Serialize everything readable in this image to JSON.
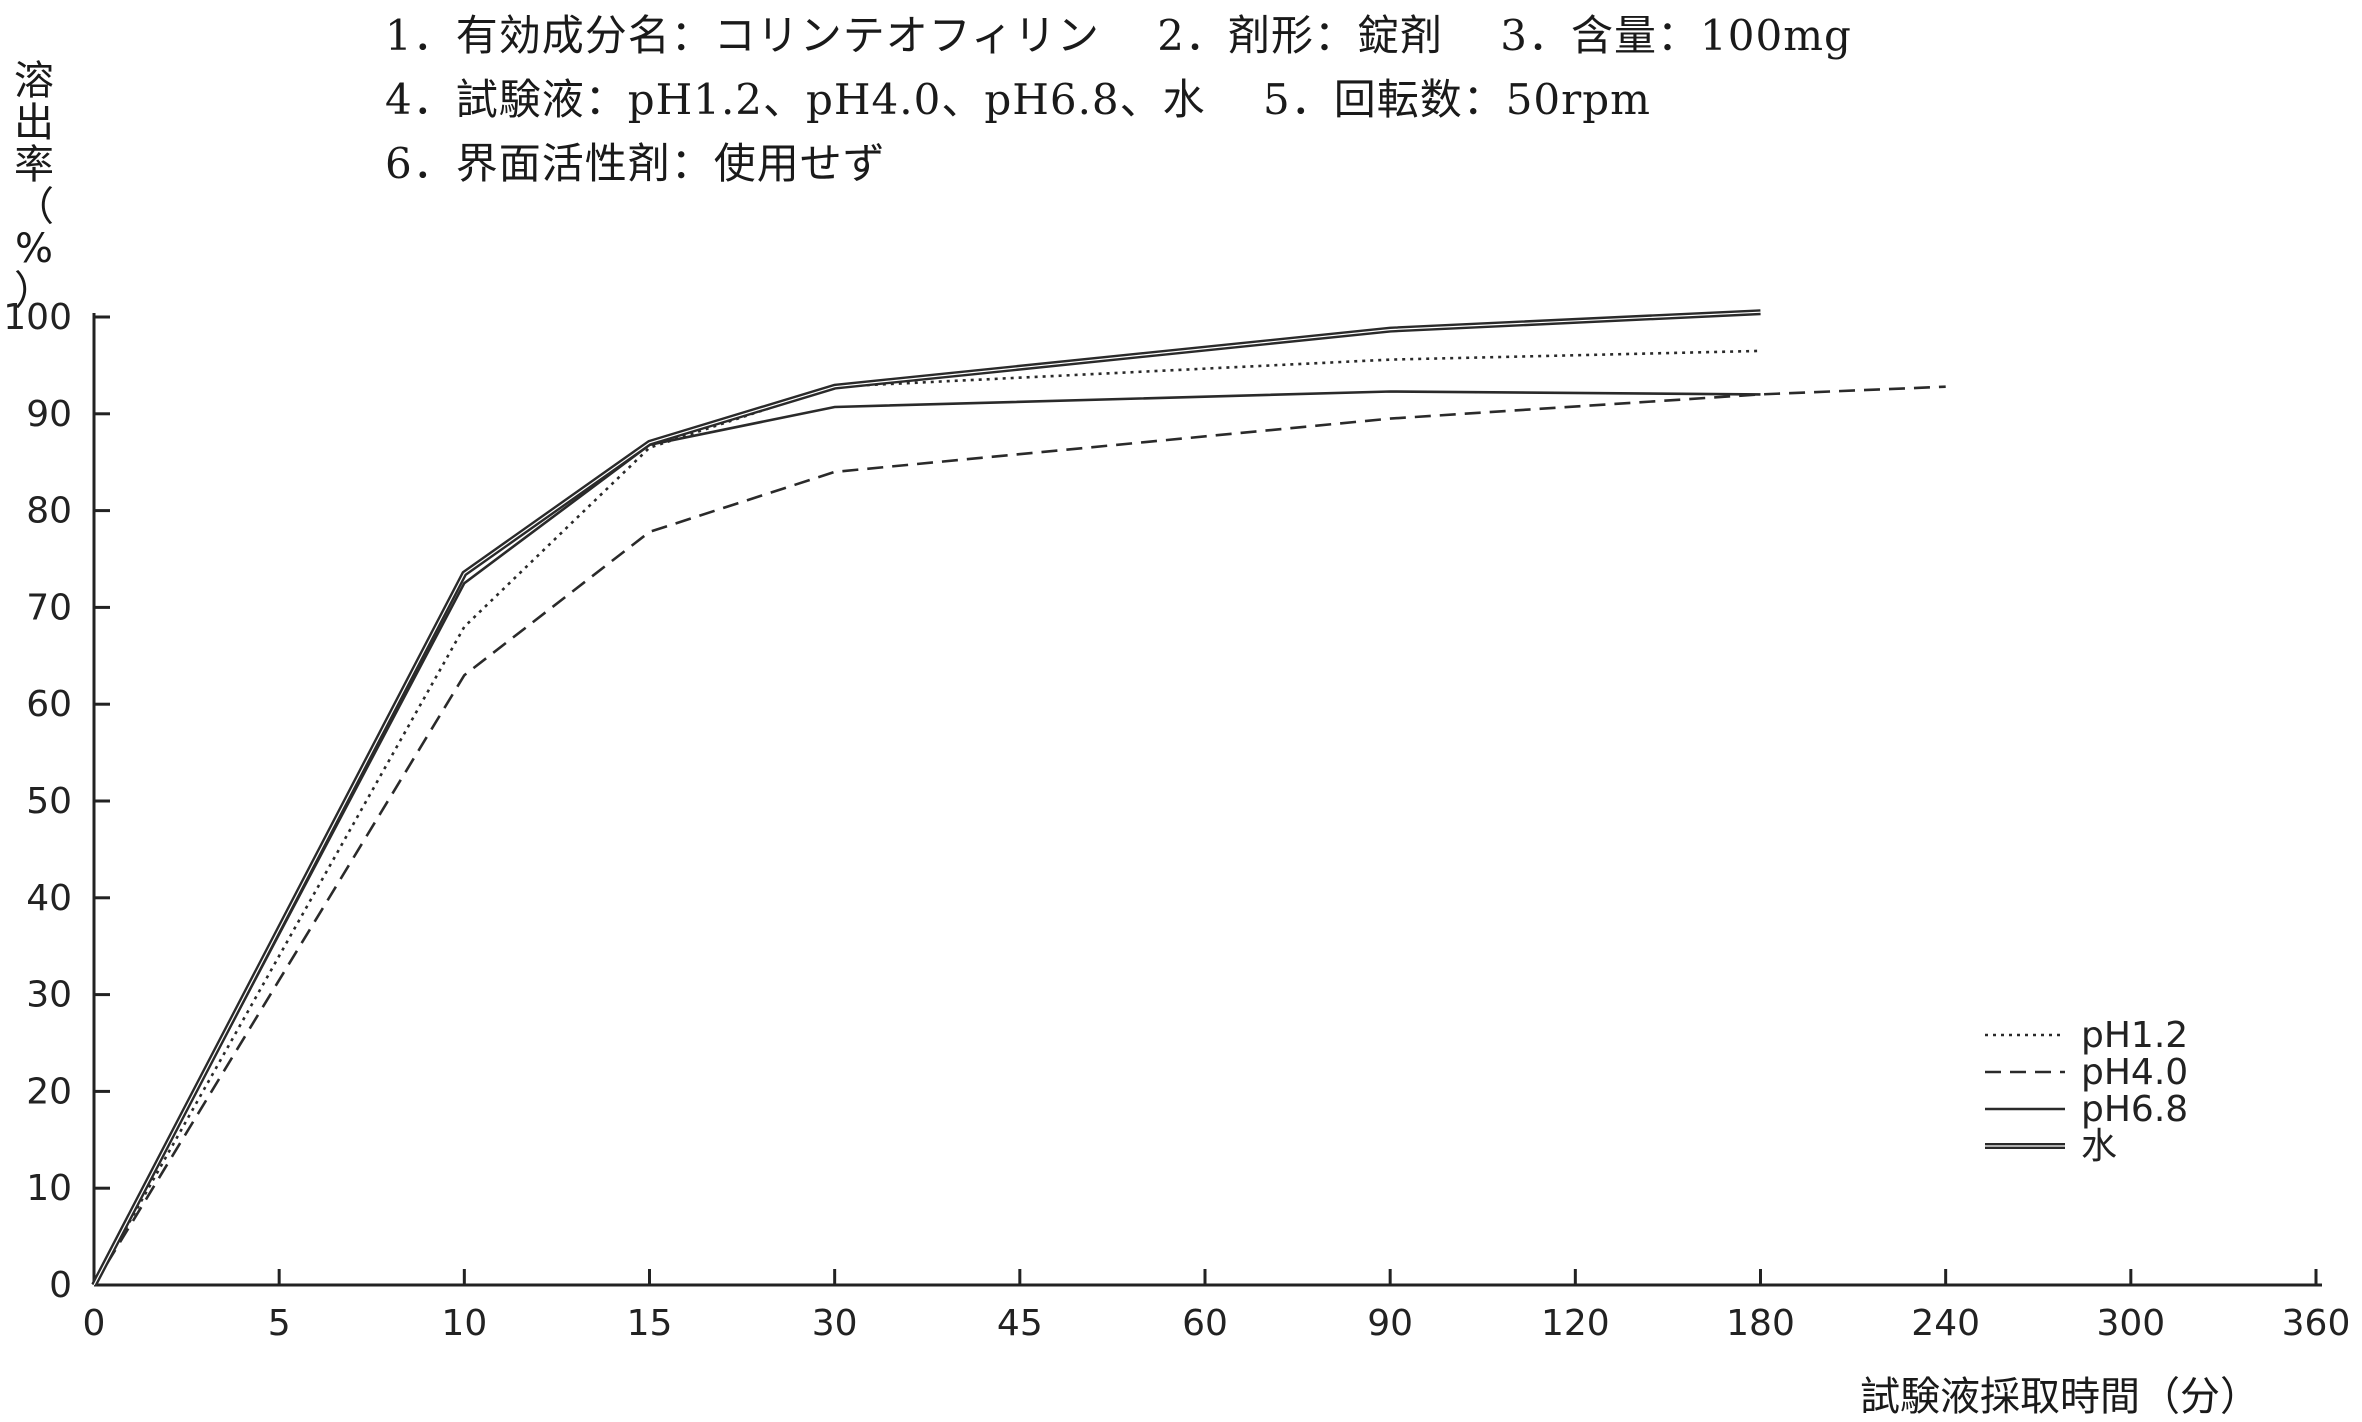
{
  "header": {
    "line1": "1．有効成分名：コリンテオフィリン　 2．剤形：錠剤　 3．含量：100mg",
    "line2": "4．試験液：pH1.2、pH4.0、pH6.8、水　 5．回転数：50rpm",
    "line3": "6．界面活性剤：使用せず"
  },
  "chart_data": {
    "type": "line",
    "ylabel_chars": [
      "溶",
      "出",
      "率",
      "（",
      "%",
      "）"
    ],
    "ylabel": "溶出率（%）",
    "xlabel": "試験液採取時間（分）",
    "categories": [
      "0",
      "5",
      "10",
      "15",
      "30",
      "45",
      "60",
      "90",
      "120",
      "180",
      "240",
      "300",
      "360"
    ],
    "yticks": [
      0,
      10,
      20,
      30,
      40,
      50,
      60,
      70,
      80,
      90,
      100
    ],
    "ylim": [
      0,
      100
    ],
    "grid": false,
    "legend_position": "bottom-right",
    "series": [
      {
        "name": "pH1.2",
        "style": "dotted",
        "x": [
          "0",
          "10",
          "15",
          "30",
          "90",
          "180"
        ],
        "values": [
          0,
          68,
          86.5,
          92.8,
          95.6,
          96.5
        ]
      },
      {
        "name": "pH4.0",
        "style": "dashed",
        "x": [
          "0",
          "10",
          "15",
          "30",
          "90",
          "180",
          "240"
        ],
        "values": [
          0,
          63,
          77.8,
          84,
          89.5,
          92,
          92.8
        ]
      },
      {
        "name": "pH6.8",
        "style": "solid",
        "x": [
          "0",
          "10",
          "15",
          "30",
          "90",
          "180"
        ],
        "values": [
          0,
          72.5,
          86.8,
          90.7,
          92.3,
          92
        ]
      },
      {
        "name": "水",
        "style": "double",
        "x": [
          "0",
          "10",
          "15",
          "30",
          "90",
          "180"
        ],
        "values": [
          0,
          73.5,
          87,
          92.8,
          98.7,
          100.5
        ]
      }
    ],
    "colors": {
      "line": "#2a2a2a",
      "axis": "#222222"
    }
  }
}
